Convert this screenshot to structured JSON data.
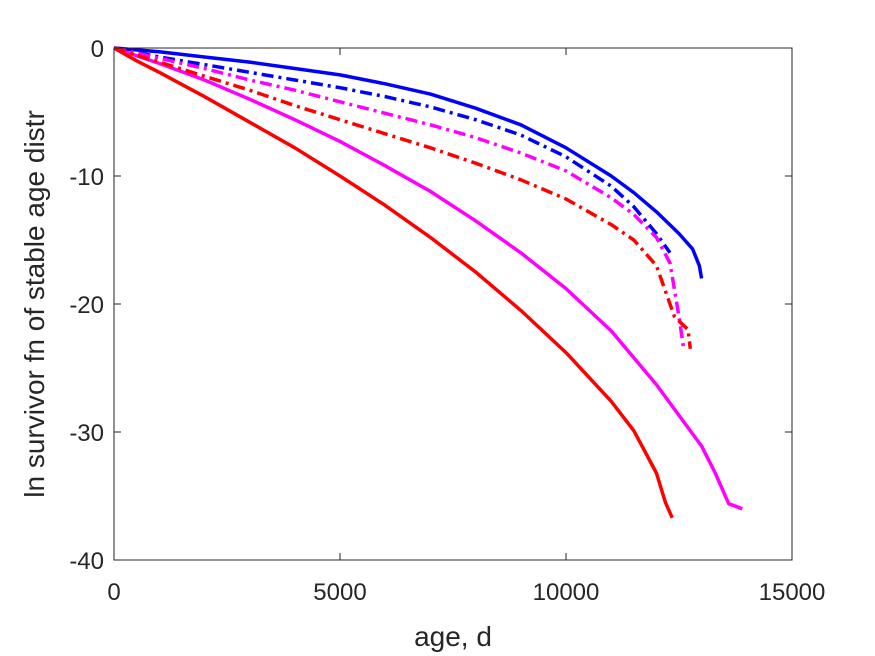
{
  "chart_data": {
    "type": "line",
    "title": "",
    "xlabel": "age, d",
    "ylabel": "ln survivor fn of stable age distr",
    "xlim": [
      0,
      15000
    ],
    "ylim": [
      -40,
      0
    ],
    "xticks": [
      0,
      5000,
      10000,
      15000
    ],
    "yticks": [
      0,
      -10,
      -20,
      -30,
      -40
    ],
    "xtick_labels": [
      "0",
      "5000",
      "10000",
      "15000"
    ],
    "ytick_labels": [
      "0",
      "-10",
      "-20",
      "-30",
      "-40"
    ],
    "grid": false,
    "box": true,
    "series": [
      {
        "color": "#0000ff",
        "style": "solid",
        "x": [
          0,
          1000,
          2000,
          3000,
          4000,
          5000,
          6000,
          7000,
          8000,
          9000,
          10000,
          11000,
          11500,
          12000,
          12500,
          12800,
          12950,
          13000
        ],
        "y": [
          0,
          -0.3,
          -0.7,
          -1.1,
          -1.6,
          -2.1,
          -2.8,
          -3.6,
          -4.7,
          -6.0,
          -7.8,
          -10.0,
          -11.3,
          -12.8,
          -14.5,
          -15.7,
          -17.0,
          -18.0
        ]
      },
      {
        "color": "#0000ff",
        "style": "dashdot",
        "x": [
          0,
          1000,
          2000,
          3000,
          4000,
          5000,
          6000,
          7000,
          8000,
          9000,
          10000,
          11000,
          11500,
          12000,
          12300
        ],
        "y": [
          0,
          -0.7,
          -1.3,
          -1.9,
          -2.5,
          -3.1,
          -3.8,
          -4.6,
          -5.6,
          -6.8,
          -8.5,
          -10.8,
          -12.4,
          -14.5,
          -16.0
        ]
      },
      {
        "color": "#ff00ff",
        "style": "solid",
        "x": [
          0,
          500,
          1000,
          2000,
          3000,
          4000,
          5000,
          6000,
          7000,
          8000,
          9000,
          10000,
          11000,
          12000,
          13000,
          13300,
          13600,
          13900
        ],
        "y": [
          0,
          -0.6,
          -1.2,
          -2.5,
          -4.0,
          -5.6,
          -7.3,
          -9.2,
          -11.2,
          -13.5,
          -16.0,
          -18.8,
          -22.1,
          -26.3,
          -31.1,
          -33.2,
          -35.6,
          -36.0
        ]
      },
      {
        "color": "#ff00ff",
        "style": "dashdot",
        "x": [
          0,
          1000,
          2000,
          3000,
          4000,
          5000,
          6000,
          7000,
          8000,
          9000,
          10000,
          11000,
          11500,
          12000,
          12300,
          12500,
          12600
        ],
        "y": [
          0,
          -0.8,
          -1.6,
          -2.5,
          -3.3,
          -4.2,
          -5.1,
          -6.0,
          -7.0,
          -8.2,
          -9.6,
          -11.7,
          -13.0,
          -14.8,
          -16.8,
          -21.0,
          -23.4
        ]
      },
      {
        "color": "#ff0000",
        "style": "solid",
        "x": [
          0,
          500,
          1000,
          2000,
          3000,
          4000,
          5000,
          6000,
          7000,
          8000,
          9000,
          10000,
          11000,
          11500,
          12000,
          12200,
          12350
        ],
        "y": [
          0,
          -1.0,
          -1.9,
          -3.8,
          -5.8,
          -7.8,
          -10.0,
          -12.3,
          -14.8,
          -17.5,
          -20.5,
          -23.8,
          -27.6,
          -29.9,
          -33.2,
          -35.5,
          -36.7
        ]
      },
      {
        "color": "#ff0000",
        "style": "dashdot",
        "x": [
          0,
          1000,
          2000,
          3000,
          4000,
          5000,
          6000,
          7000,
          8000,
          9000,
          10000,
          11000,
          11500,
          12000,
          12400,
          12700,
          12750
        ],
        "y": [
          0,
          -1.1,
          -2.2,
          -3.3,
          -4.5,
          -5.6,
          -6.7,
          -7.8,
          -9.0,
          -10.3,
          -11.8,
          -13.8,
          -15.0,
          -17.0,
          -21.0,
          -22.0,
          -23.5
        ]
      }
    ]
  }
}
